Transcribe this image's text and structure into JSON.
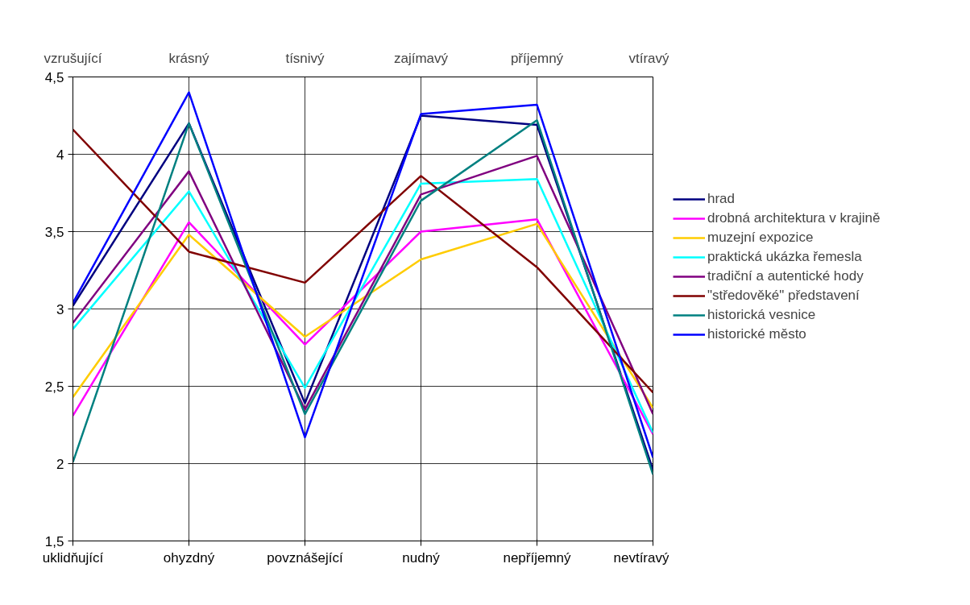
{
  "chart_data": {
    "type": "line",
    "categories": [
      "uklidňující",
      "ohyzdný",
      "povznášející",
      "nudný",
      "nepříjemný",
      "nevtíravý"
    ],
    "annotations": [
      "vzrušující",
      "krásný",
      "tísnivý",
      "zajímavý",
      "příjemný",
      "vtíravý"
    ],
    "series": [
      {
        "name": "hrad",
        "color": "#000080",
        "values": [
          3.02,
          4.2,
          2.39,
          4.25,
          4.19,
          1.96
        ]
      },
      {
        "name": "drobná architektura v krajině",
        "color": "#ff00ff",
        "values": [
          2.31,
          3.56,
          2.77,
          3.5,
          3.58,
          2.19
        ]
      },
      {
        "name": "muzejní expozice",
        "color": "#ffcc00",
        "values": [
          2.43,
          3.48,
          2.82,
          3.32,
          3.55,
          2.36
        ]
      },
      {
        "name": "praktická ukázka řemesla",
        "color": "#00ffff",
        "values": [
          2.87,
          3.76,
          2.49,
          3.81,
          3.84,
          2.2
        ]
      },
      {
        "name": "tradiční a autentické hody",
        "color": "#800080",
        "values": [
          2.91,
          3.89,
          2.35,
          3.74,
          3.99,
          2.32
        ]
      },
      {
        "name": "\"středověké\" představení",
        "color": "#800000",
        "values": [
          4.16,
          3.37,
          3.17,
          3.86,
          3.27,
          2.46
        ]
      },
      {
        "name": "historická vesnice",
        "color": "#008080",
        "values": [
          2.01,
          4.2,
          2.32,
          3.7,
          4.22,
          1.93
        ]
      },
      {
        "name": "historické město",
        "color": "#0000ff",
        "values": [
          3.04,
          4.4,
          2.17,
          4.26,
          4.32,
          2.04
        ]
      }
    ],
    "ylim": [
      1.5,
      4.5
    ],
    "yticks": [
      {
        "value": 1.5,
        "label": "1,5"
      },
      2,
      {
        "value": 2.5,
        "label": "2,5"
      },
      3,
      {
        "value": 3.5,
        "label": "3,5"
      },
      4,
      {
        "value": 4.5,
        "label": "4,5"
      }
    ],
    "grid": true,
    "legend": "right",
    "marker": "none",
    "line_style": "solid"
  }
}
